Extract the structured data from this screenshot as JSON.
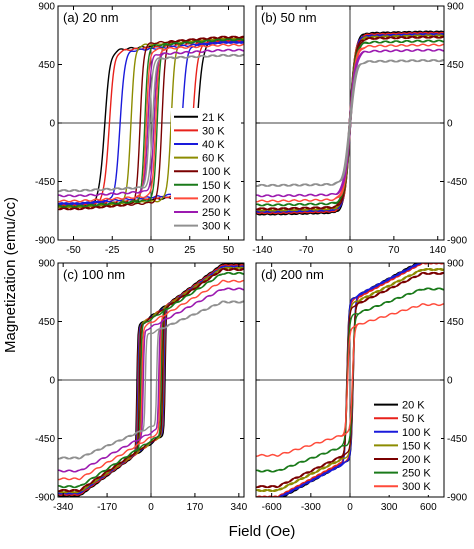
{
  "figure": {
    "ylabel": "Magnetization (emu/cc)",
    "xlabel": "Field (Oe)"
  },
  "chart_data": [
    {
      "type": "line",
      "title": "(a) 20 nm",
      "xlim": [
        -60,
        60
      ],
      "ylim": [
        -900,
        900
      ],
      "xticks": [
        -50,
        -25,
        0,
        25,
        50
      ],
      "yticks": [
        -900,
        -450,
        0,
        450,
        900
      ],
      "ytick_side": "left",
      "legend": "center-right",
      "series": [
        {
          "name": "21 K",
          "color": "#000000",
          "ms": 640,
          "hc": 30,
          "w": 3.5,
          "r": 0.08
        },
        {
          "name": "30 K",
          "color": "#e8211b",
          "ms": 630,
          "hc": 27,
          "w": 3.2,
          "r": 0.08
        },
        {
          "name": "40 K",
          "color": "#1a1adb",
          "ms": 620,
          "hc": 20,
          "w": 3.0,
          "r": 0.08
        },
        {
          "name": "60 K",
          "color": "#8c8c00",
          "ms": 650,
          "hc": 13,
          "w": 2.5,
          "r": 0.07
        },
        {
          "name": "100 K",
          "color": "#7a0000",
          "ms": 660,
          "hc": 7,
          "w": 2.2,
          "r": 0.07
        },
        {
          "name": "150 K",
          "color": "#1a7a1a",
          "ms": 640,
          "hc": 4,
          "w": 2.0,
          "r": 0.07
        },
        {
          "name": "200 K",
          "color": "#ff4a3a",
          "ms": 600,
          "hc": 3,
          "w": 2.0,
          "r": 0.06
        },
        {
          "name": "250 K",
          "color": "#9c1ab0",
          "ms": 560,
          "hc": 2,
          "w": 2.0,
          "r": 0.06
        },
        {
          "name": "300 K",
          "color": "#909090",
          "ms": 520,
          "hc": 1,
          "w": 2.0,
          "r": 0.05
        }
      ]
    },
    {
      "type": "line",
      "title": "(b) 50 nm",
      "xlim": [
        -150,
        150
      ],
      "ylim": [
        -900,
        900
      ],
      "xticks": [
        -140,
        -70,
        0,
        70,
        140
      ],
      "yticks": [
        -900,
        -450,
        0,
        450,
        900
      ],
      "ytick_side": "right",
      "series": [
        {
          "color": "#000000",
          "ms": 700,
          "hc": 1,
          "w": 9,
          "r": 0.02
        },
        {
          "color": "#e8211b",
          "ms": 690,
          "hc": 1,
          "w": 9,
          "r": 0.02
        },
        {
          "color": "#1a1adb",
          "ms": 680,
          "hc": 1,
          "w": 9,
          "r": 0.02
        },
        {
          "color": "#8c8c00",
          "ms": 670,
          "hc": 1,
          "w": 9,
          "r": 0.02
        },
        {
          "color": "#7a0000",
          "ms": 660,
          "hc": 1,
          "w": 9,
          "r": 0.02
        },
        {
          "color": "#1a7a1a",
          "ms": 630,
          "hc": 1,
          "w": 9,
          "r": 0.02
        },
        {
          "color": "#ff4a3a",
          "ms": 600,
          "hc": 1,
          "w": 9,
          "r": 0.02
        },
        {
          "color": "#9c1ab0",
          "ms": 560,
          "hc": 1,
          "w": 9,
          "r": 0.02
        },
        {
          "color": "#909090",
          "ms": 480,
          "hc": 1,
          "w": 9,
          "r": 0.02
        }
      ]
    },
    {
      "type": "line",
      "title": "(c) 100 nm",
      "xlim": [
        -360,
        360
      ],
      "ylim": [
        -900,
        900
      ],
      "xticks": [
        -340,
        -170,
        0,
        170,
        340
      ],
      "yticks": [
        -900,
        -450,
        0,
        450,
        900
      ],
      "ytick_side": "left",
      "series": [
        {
          "color": "#000000",
          "ms": 890,
          "hc": 55,
          "w": 4,
          "r": 0.45
        },
        {
          "color": "#e8211b",
          "ms": 880,
          "hc": 52,
          "w": 4,
          "r": 0.45
        },
        {
          "color": "#1a1adb",
          "ms": 870,
          "hc": 50,
          "w": 4,
          "r": 0.45
        },
        {
          "color": "#8c8c00",
          "ms": 860,
          "hc": 47,
          "w": 4,
          "r": 0.44
        },
        {
          "color": "#7a0000",
          "ms": 850,
          "hc": 45,
          "w": 4,
          "r": 0.44
        },
        {
          "color": "#1a7a1a",
          "ms": 820,
          "hc": 40,
          "w": 4,
          "r": 0.43
        },
        {
          "color": "#ff4a3a",
          "ms": 760,
          "hc": 35,
          "w": 4,
          "r": 0.42
        },
        {
          "color": "#9c1ab0",
          "ms": 700,
          "hc": 30,
          "w": 4,
          "r": 0.42
        },
        {
          "color": "#909090",
          "ms": 600,
          "hc": 22,
          "w": 4,
          "r": 0.4
        }
      ]
    },
    {
      "type": "line",
      "title": "(d) 200 nm",
      "xlim": [
        -720,
        720
      ],
      "ylim": [
        -900,
        900
      ],
      "xticks": [
        -600,
        -300,
        0,
        300,
        600
      ],
      "yticks": [
        -900,
        -450,
        0,
        450,
        900
      ],
      "ytick_side": "right",
      "legend": "lower-right",
      "series": [
        {
          "name": "20 K",
          "color": "#000000",
          "ms": 920,
          "hc": 25,
          "w": 15,
          "r": 0.33
        },
        {
          "name": "50 K",
          "color": "#e8211b",
          "ms": 900,
          "hc": 24,
          "w": 15,
          "r": 0.33
        },
        {
          "name": "100 K",
          "color": "#1a1adb",
          "ms": 910,
          "hc": 23,
          "w": 15,
          "r": 0.32
        },
        {
          "name": "150 K",
          "color": "#8c8c00",
          "ms": 850,
          "hc": 22,
          "w": 15,
          "r": 0.32
        },
        {
          "name": "200 K",
          "color": "#7a0000",
          "ms": 820,
          "hc": 21,
          "w": 15,
          "r": 0.32
        },
        {
          "name": "250 K",
          "color": "#1a7a1a",
          "ms": 700,
          "hc": 20,
          "w": 15,
          "r": 0.3
        },
        {
          "name": "300 K",
          "color": "#ff4a3a",
          "ms": 580,
          "hc": 18,
          "w": 15,
          "r": 0.3
        }
      ]
    }
  ]
}
